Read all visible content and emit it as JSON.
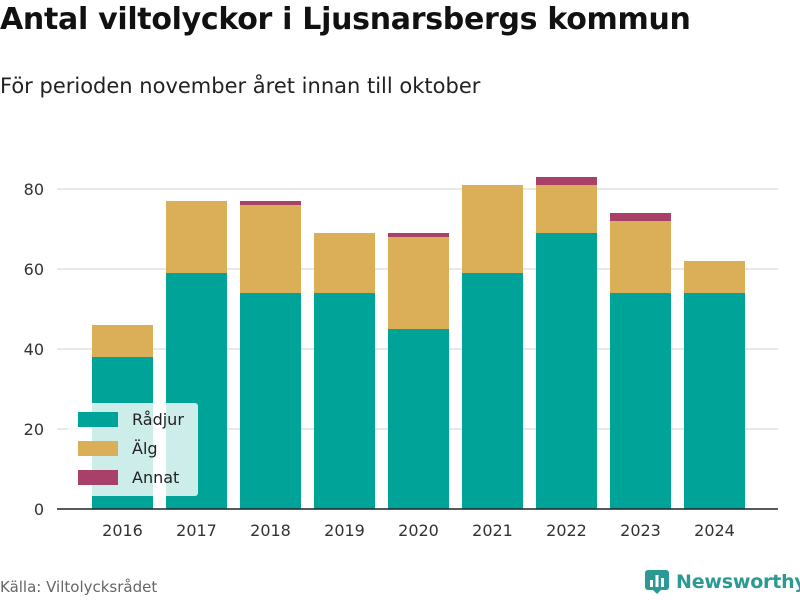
{
  "title": "Antal viltolyckor i Ljusnarsbergs kommun",
  "subtitle": "För perioden november året innan till oktober",
  "source": "Källa: Viltolycksrådet",
  "brand": {
    "name": "Newsworthy",
    "icon": "bar-chart-icon"
  },
  "colors": {
    "radjur": "#00a398",
    "alg": "#dbae58",
    "annat": "#a8406a",
    "grid": "#d9d9d9",
    "brand": "#2b9a92"
  },
  "chart_data": {
    "type": "bar",
    "stacked": true,
    "categories": [
      "2016",
      "2017",
      "2018",
      "2019",
      "2020",
      "2021",
      "2022",
      "2023",
      "2024"
    ],
    "series": [
      {
        "name": "Rådjur",
        "color": "#00a398",
        "values": [
          38,
          59,
          54,
          54,
          45,
          59,
          69,
          54,
          54
        ]
      },
      {
        "name": "Älg",
        "color": "#dbae58",
        "values": [
          8,
          18,
          22,
          15,
          23,
          22,
          12,
          18,
          8
        ]
      },
      {
        "name": "Annat",
        "color": "#a8406a",
        "values": [
          0,
          0,
          1,
          0,
          1,
          0,
          2,
          2,
          0
        ]
      }
    ],
    "yticks": [
      0,
      20,
      40,
      60,
      80
    ],
    "ylim": [
      0,
      86
    ],
    "grid": true,
    "legend": "bottom-left"
  }
}
